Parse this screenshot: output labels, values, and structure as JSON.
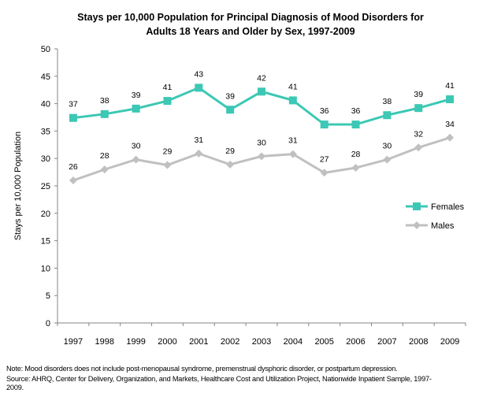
{
  "chart_data": {
    "type": "line",
    "title": "Stays per 10,000  Population for Principal Diagnosis of Mood Disorders for Adults 18 Years and Older by Sex, 1997-2009",
    "title_lines": [
      "Stays per 10,000  Population for Principal Diagnosis of Mood Disorders for",
      "Adults 18 Years and Older by Sex, 1997-2009"
    ],
    "xlabel": "",
    "ylabel": "Stays per 10,000 Population",
    "ylim": [
      0,
      50
    ],
    "yticks": [
      0,
      5,
      10,
      15,
      20,
      25,
      30,
      35,
      40,
      45,
      50
    ],
    "grid": false,
    "legend": "right",
    "categories": [
      "1997",
      "1998",
      "1999",
      "2000",
      "2001",
      "2002",
      "2003",
      "2004",
      "2005",
      "2006",
      "2007",
      "2008",
      "2009"
    ],
    "series": [
      {
        "name": "Females",
        "color": "#3cc8b4",
        "marker": "square",
        "values": [
          37.4,
          38.1,
          39.1,
          40.5,
          42.9,
          38.9,
          42.2,
          40.6,
          36.2,
          36.2,
          37.9,
          39.2,
          40.8
        ],
        "labels": [
          "37",
          "38",
          "39",
          "41",
          "43",
          "39",
          "42",
          "41",
          "36",
          "36",
          "38",
          "39",
          "41"
        ]
      },
      {
        "name": "Males",
        "color": "#c0c0c0",
        "marker": "diamond",
        "values": [
          26.0,
          28.0,
          29.8,
          28.8,
          30.9,
          28.9,
          30.4,
          30.8,
          27.4,
          28.3,
          29.8,
          32.0,
          33.8
        ],
        "labels": [
          "26",
          "28",
          "30",
          "29",
          "31",
          "29",
          "30",
          "31",
          "27",
          "28",
          "30",
          "32",
          "34"
        ]
      }
    ]
  },
  "notes": {
    "note": "Note: Mood disorders does not include post-menopausal syndrome, premenstrual dysphoric disorder, or postpartum depression.",
    "source_line1": "Source: AHRQ, Center for Delivery, Organization, and Markets, Healthcare Cost and Utilization Project, Nationwide Inpatient Sample, 1997-",
    "source_line2": "2009."
  }
}
